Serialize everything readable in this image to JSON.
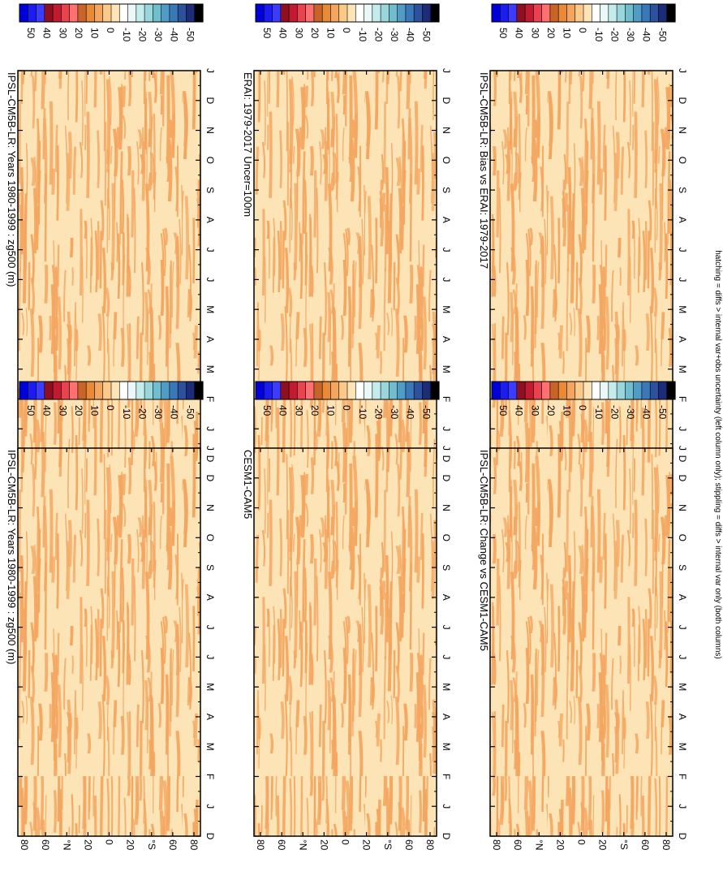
{
  "figure": {
    "footnote": "hatching = diffs > internal var+obs uncertainty (left column only); stippling = diffs > internal var only (both columns)"
  },
  "colors": {
    "field_light": "#fde4b6",
    "field_dark": "#f4a660",
    "frame": "#000000"
  },
  "colorbar": {
    "labels": [
      "50",
      "40",
      "30",
      "20",
      "10",
      "0",
      "-10",
      "-20",
      "-30",
      "-40",
      "-50"
    ],
    "colors": [
      "#0000d8",
      "#1c1cf0",
      "#3c3cff",
      "#8e0f1f",
      "#c21a30",
      "#e8434f",
      "#ff7070",
      "#c86428",
      "#e88a36",
      "#f4a660",
      "#fbc98a",
      "#fde4b6",
      "#ffffff",
      "#eaf8f8",
      "#c5ecec",
      "#99d7dc",
      "#6fbdcf",
      "#4f9cc7",
      "#3a78b8",
      "#2d519c",
      "#1d2c78",
      "#000000"
    ]
  },
  "axes": {
    "month_labels": [
      "D",
      "J",
      "F",
      "M",
      "A",
      "M",
      "J",
      "J",
      "A",
      "S",
      "O",
      "N",
      "D",
      "J"
    ],
    "lat_labels": [
      "80",
      "60",
      "°N",
      "20",
      "0",
      "20",
      "°S",
      "60",
      "80"
    ]
  },
  "chart_data": [
    {
      "type": "heatmap",
      "title": "IPSL-CM5B-LR: Years 1980-1999 : zg500 (m)",
      "x": [
        "D",
        "J",
        "F",
        "M",
        "A",
        "M",
        "J",
        "J",
        "A",
        "S",
        "O",
        "N",
        "D",
        "J"
      ],
      "y": [
        "80",
        "60",
        "°N",
        "20",
        "0",
        "20",
        "°S",
        "60",
        "80"
      ],
      "colorbar_range": [
        -50,
        50
      ],
      "dominant_values": [
        0,
        10
      ]
    },
    {
      "type": "heatmap",
      "title": "IPSL-CM5B-LR: Years 1980-1999 : zg500 (m)",
      "x": [
        "D",
        "J",
        "F",
        "M",
        "A",
        "M",
        "J",
        "J",
        "A",
        "S",
        "O",
        "N",
        "D",
        "J"
      ],
      "y": [
        "80",
        "60",
        "°N",
        "20",
        "0",
        "20",
        "°S",
        "60",
        "80"
      ],
      "colorbar_range": [
        -50,
        50
      ],
      "dominant_values": [
        0,
        10
      ]
    },
    {
      "type": "heatmap",
      "title": "ERAI: 1979-2017 Uncer=100m",
      "x": [
        "D",
        "J",
        "F",
        "M",
        "A",
        "M",
        "J",
        "J",
        "A",
        "S",
        "O",
        "N",
        "D",
        "J"
      ],
      "y": [
        "80",
        "60",
        "°N",
        "20",
        "0",
        "20",
        "°S",
        "60",
        "80"
      ],
      "colorbar_range": [
        -50,
        50
      ],
      "dominant_values": [
        0,
        10
      ]
    },
    {
      "type": "heatmap",
      "title": "CESM1-CAM5",
      "x": [
        "D",
        "J",
        "F",
        "M",
        "A",
        "M",
        "J",
        "J",
        "A",
        "S",
        "O",
        "N",
        "D",
        "J"
      ],
      "y": [
        "80",
        "60",
        "°N",
        "20",
        "0",
        "20",
        "°S",
        "60",
        "80"
      ],
      "colorbar_range": [
        -50,
        50
      ],
      "dominant_values": [
        0,
        10
      ]
    },
    {
      "type": "heatmap",
      "title": "IPSL-CM5B-LR: Bias vs ERAI: 1979-2017",
      "x": [
        "D",
        "J",
        "F",
        "M",
        "A",
        "M",
        "J",
        "J",
        "A",
        "S",
        "O",
        "N",
        "D",
        "J"
      ],
      "y": [
        "80",
        "60",
        "°N",
        "20",
        "0",
        "20",
        "°S",
        "60",
        "80"
      ],
      "colorbar_range": [
        -50,
        50
      ],
      "dominant_values": [
        0,
        10
      ]
    },
    {
      "type": "heatmap",
      "title": "IPSL-CM5B-LR: Change vs CESM1-CAM5",
      "x": [
        "D",
        "J",
        "F",
        "M",
        "A",
        "M",
        "J",
        "J",
        "A",
        "S",
        "O",
        "N",
        "D",
        "J"
      ],
      "y": [
        "80",
        "60",
        "°N",
        "20",
        "0",
        "20",
        "°S",
        "60",
        "80"
      ],
      "colorbar_range": [
        -50,
        50
      ],
      "dominant_values": [
        0,
        10
      ]
    }
  ]
}
